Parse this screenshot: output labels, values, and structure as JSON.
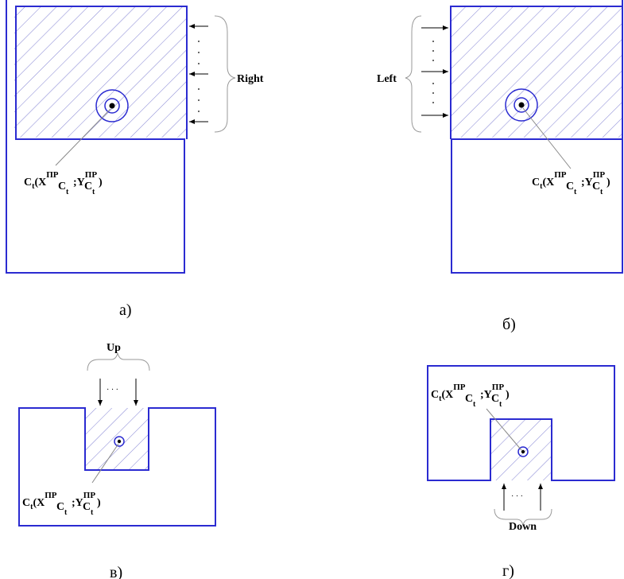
{
  "panels": {
    "a": {
      "caption": "а)",
      "direction": "Right"
    },
    "b": {
      "caption": "б)",
      "direction": "Left"
    },
    "v": {
      "caption": "в)",
      "direction": "Up"
    },
    "g": {
      "caption": "г)",
      "direction": "Down"
    }
  },
  "centroid_label": {
    "c": "C",
    "t": "t",
    "open": "(X",
    "sup": "ПР",
    "sub": "C",
    "subsub": "t",
    "sep": ";Y",
    "close": ")"
  },
  "dots": "· · ·",
  "colors": {
    "outline": "#2b2bd1",
    "hatch": "#8a8ad6",
    "leader": "#888888"
  }
}
